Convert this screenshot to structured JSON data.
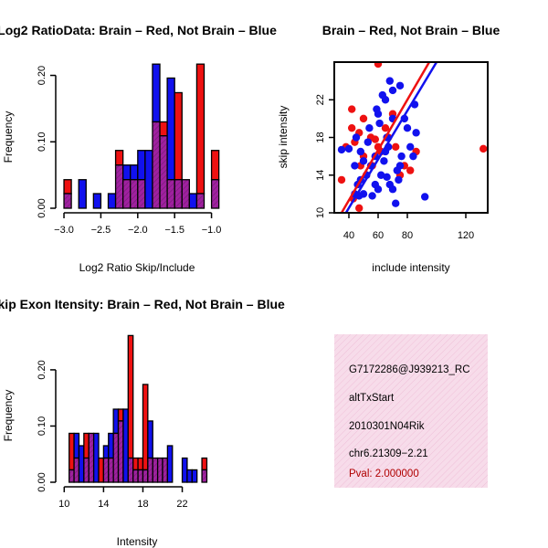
{
  "colors": {
    "red": "#ee1111",
    "blue": "#1111ee",
    "overlap": "#a020a0",
    "hatch": "#702070",
    "info_bg": "#f7dcea",
    "info_hatch": "#eeb8d4",
    "pval_text": "#b00000"
  },
  "chart_data": [
    {
      "type": "bar",
      "id": "ratio_hist",
      "title": "Log2 RatioData: Brain – Red, Not Brain – Blue",
      "xlabel": "Log2 Ratio Skip/Include",
      "ylabel": "Frequency",
      "xlim": [
        -3.05,
        -0.97
      ],
      "ylim": [
        0,
        0.22
      ],
      "bin_width": 0.1,
      "bin_starts": [
        -3.0,
        -2.9,
        -2.8,
        -2.7,
        -2.6,
        -2.5,
        -2.4,
        -2.3,
        -2.2,
        -2.1,
        -2.0,
        -1.9,
        -1.8,
        -1.7,
        -1.6,
        -1.5,
        -1.4,
        -1.3,
        -1.2,
        -1.1,
        -1.0
      ],
      "series": [
        {
          "name": "Brain",
          "color": "red",
          "values": [
            0.043,
            0.0,
            0.0,
            0.0,
            0.0,
            0.0,
            0.0,
            0.087,
            0.043,
            0.043,
            0.043,
            0.0,
            0.13,
            0.13,
            0.043,
            0.174,
            0.043,
            0.0,
            0.217,
            0.0,
            0.087
          ]
        },
        {
          "name": "Not Brain",
          "color": "blue",
          "values": [
            0.022,
            0.0,
            0.043,
            0.0,
            0.022,
            0.0,
            0.022,
            0.065,
            0.065,
            0.065,
            0.087,
            0.087,
            0.217,
            0.109,
            0.196,
            0.043,
            0.043,
            0.022,
            0.022,
            0.0,
            0.043
          ]
        }
      ],
      "xticks": [
        -3.0,
        -2.5,
        -2.0,
        -1.5,
        -1.0
      ],
      "xtick_labels": [
        "−3.0",
        "−2.5",
        "−2.0",
        "−1.5",
        "−1.0"
      ],
      "yticks": [
        0.0,
        0.1,
        0.2
      ],
      "ytick_labels": [
        "0.00",
        "0.10",
        "0.20"
      ]
    },
    {
      "type": "scatter",
      "id": "skip_include",
      "title": "Brain – Red, Not Brain – Blue",
      "xlabel": "include intensity",
      "ylabel": "skip intensity",
      "xlim": [
        30,
        135
      ],
      "ylim": [
        10,
        26
      ],
      "xticks": [
        40,
        60,
        80,
        120
      ],
      "xtick_labels": [
        "40",
        "60",
        "80",
        "120"
      ],
      "yticks": [
        10,
        14,
        18,
        22
      ],
      "ytick_labels": [
        "10",
        "14",
        "18",
        "22"
      ],
      "series": [
        {
          "name": "Brain",
          "color": "red",
          "points": [
            [
              43,
              11.5
            ],
            [
              47,
              10.5
            ],
            [
              60,
              25.8
            ],
            [
              38,
              17
            ],
            [
              42,
              19
            ],
            [
              47,
              18.5
            ],
            [
              44,
              17.5
            ],
            [
              50,
              16
            ],
            [
              55,
              18
            ],
            [
              60,
              17
            ],
            [
              65,
              19
            ],
            [
              70,
              20.5
            ],
            [
              75,
              14
            ],
            [
              78,
              15
            ],
            [
              82,
              14.5
            ],
            [
              86,
              16.5
            ],
            [
              132,
              16.8
            ],
            [
              50,
              20
            ],
            [
              42,
              21
            ],
            [
              35,
              13.5
            ],
            [
              56,
              15
            ],
            [
              62,
              16.5
            ],
            [
              52,
              14
            ],
            [
              48,
              15
            ],
            [
              58,
              17.8
            ],
            [
              67,
              18
            ],
            [
              72,
              17
            ]
          ]
        },
        {
          "name": "Not Brain",
          "color": "blue",
          "points": [
            [
              35,
              16.7
            ],
            [
              40,
              16.8
            ],
            [
              44,
              15
            ],
            [
              46,
              13
            ],
            [
              48,
              13.5
            ],
            [
              50,
              12
            ],
            [
              52,
              14
            ],
            [
              53,
              17.5
            ],
            [
              56,
              11.8
            ],
            [
              58,
              13
            ],
            [
              60,
              12.5
            ],
            [
              62,
              14
            ],
            [
              64,
              15.5
            ],
            [
              65,
              16.5
            ],
            [
              66,
              13.8
            ],
            [
              67,
              17
            ],
            [
              68,
              13
            ],
            [
              70,
              12.5
            ],
            [
              72,
              11
            ],
            [
              74,
              13.5
            ],
            [
              75,
              15
            ],
            [
              76,
              16
            ],
            [
              78,
              20
            ],
            [
              80,
              19
            ],
            [
              82,
              17
            ],
            [
              84,
              16
            ],
            [
              86,
              18.5
            ],
            [
              92,
              11.7
            ],
            [
              59,
              21
            ],
            [
              60,
              20.5
            ],
            [
              61,
              19.5
            ],
            [
              63,
              22.5
            ],
            [
              65,
              22
            ],
            [
              68,
              24
            ],
            [
              70,
              23
            ],
            [
              75,
              23.5
            ],
            [
              58,
              16
            ],
            [
              55,
              15
            ],
            [
              50,
              15.5
            ],
            [
              48,
              16.5
            ],
            [
              45,
              18
            ],
            [
              54,
              19
            ],
            [
              66,
              18
            ],
            [
              70,
              20
            ],
            [
              44,
              12
            ],
            [
              47,
              11.8
            ],
            [
              73,
              14.5
            ],
            [
              85,
              21.5
            ]
          ]
        }
      ],
      "fits": [
        {
          "color": "red",
          "x": [
            35,
            95
          ],
          "y": [
            10,
            26
          ]
        },
        {
          "color": "blue",
          "x": [
            38,
            100
          ],
          "y": [
            10,
            26
          ]
        }
      ]
    },
    {
      "type": "bar",
      "id": "intensity_hist",
      "title": "Skip Exon Itensity: Brain – Red, Not Brain – Blue",
      "xlabel": "Intensity",
      "ylabel": "Frequency",
      "xlim": [
        9.6,
        25.2
      ],
      "ylim": [
        0,
        0.26
      ],
      "bin_width": 0.5,
      "bin_starts": [
        10.5,
        11.0,
        11.5,
        12.0,
        12.5,
        13.0,
        13.5,
        14.0,
        14.5,
        15.0,
        15.5,
        16.0,
        16.5,
        17.0,
        17.5,
        18.0,
        18.5,
        19.0,
        19.5,
        20.0,
        20.5,
        21.0,
        21.5,
        22.0,
        22.5,
        23.0,
        23.5,
        24.0
      ],
      "series": [
        {
          "name": "Brain",
          "color": "red",
          "values": [
            0.087,
            0.043,
            0.0,
            0.087,
            0.087,
            0.0,
            0.043,
            0.043,
            0.043,
            0.087,
            0.13,
            0.0,
            0.261,
            0.043,
            0.043,
            0.174,
            0.043,
            0.043,
            0.043,
            0.043,
            0.0,
            0.0,
            0.0,
            0.0,
            0.0,
            0.0,
            0.0,
            0.043
          ]
        },
        {
          "name": "Not Brain",
          "color": "blue",
          "values": [
            0.022,
            0.087,
            0.065,
            0.043,
            0.087,
            0.087,
            0.0,
            0.065,
            0.087,
            0.13,
            0.109,
            0.13,
            0.043,
            0.022,
            0.022,
            0.022,
            0.109,
            0.043,
            0.043,
            0.043,
            0.065,
            0.0,
            0.0,
            0.043,
            0.022,
            0.022,
            0.0,
            0.022
          ]
        }
      ],
      "xticks": [
        10,
        14,
        18,
        22
      ],
      "xtick_labels": [
        "10",
        "14",
        "18",
        "22"
      ],
      "yticks": [
        0.0,
        0.1,
        0.2
      ],
      "ytick_labels": [
        "0.00",
        "0.10",
        "0.20"
      ]
    }
  ],
  "info_panel": {
    "lines": [
      "G7172286@J939213_RC",
      "altTxStart",
      "2010301N04Rik",
      "chr6.21309−2.21"
    ],
    "pval": "Pval: 2.000000"
  }
}
